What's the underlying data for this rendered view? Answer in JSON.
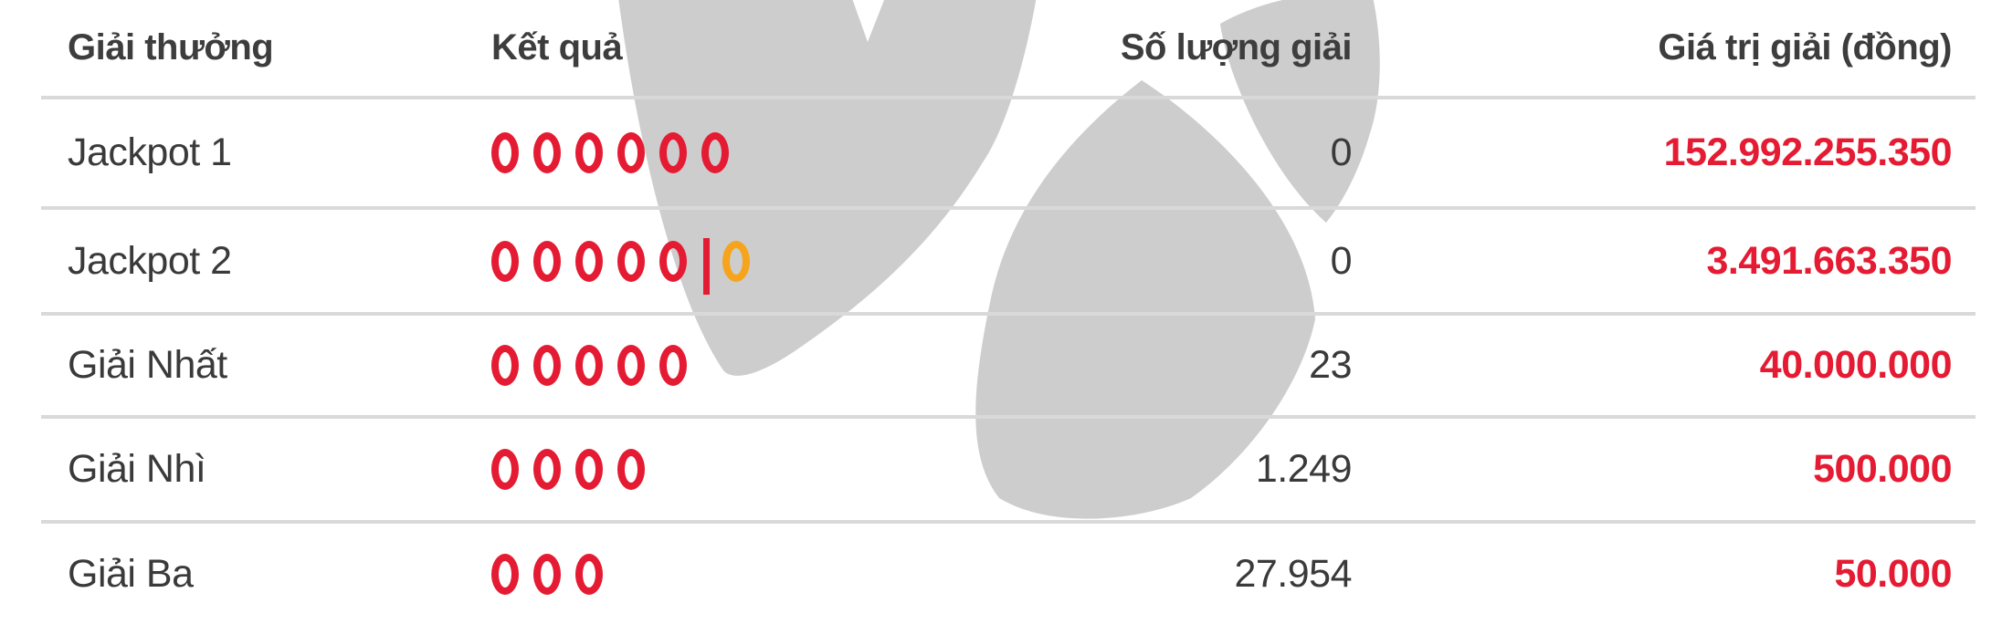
{
  "table": {
    "headers": {
      "prize": "Giải thưởng",
      "result": "Kết quả",
      "quantity": "Số lượng giải",
      "value": "Giá trị giải (đồng)"
    },
    "rows": [
      {
        "prize": "Jackpot 1",
        "main_circles": 6,
        "has_bonus": false,
        "quantity": "0",
        "value": "152.992.255.350"
      },
      {
        "prize": "Jackpot 2",
        "main_circles": 5,
        "has_bonus": true,
        "quantity": "0",
        "value": "3.491.663.350"
      },
      {
        "prize": "Giải Nhất",
        "main_circles": 5,
        "has_bonus": false,
        "quantity": "23",
        "value": "40.000.000"
      },
      {
        "prize": "Giải Nhì",
        "main_circles": 4,
        "has_bonus": false,
        "quantity": "1.249",
        "value": "500.000"
      },
      {
        "prize": "Giải Ba",
        "main_circles": 3,
        "has_bonus": false,
        "quantity": "27.954",
        "value": "50.000"
      }
    ]
  },
  "icons": {
    "main_circle": "red-circle-icon",
    "bonus_circle": "orange-circle-icon",
    "watermark": "vietlott-logo-watermark"
  },
  "colors": {
    "main_circle": "#e41b32",
    "bonus_circle": "#f6a41c",
    "value_text": "#e41b32",
    "text": "#3a3a3a",
    "divider": "#d9d9d9",
    "watermark": "#cdcdcd"
  }
}
